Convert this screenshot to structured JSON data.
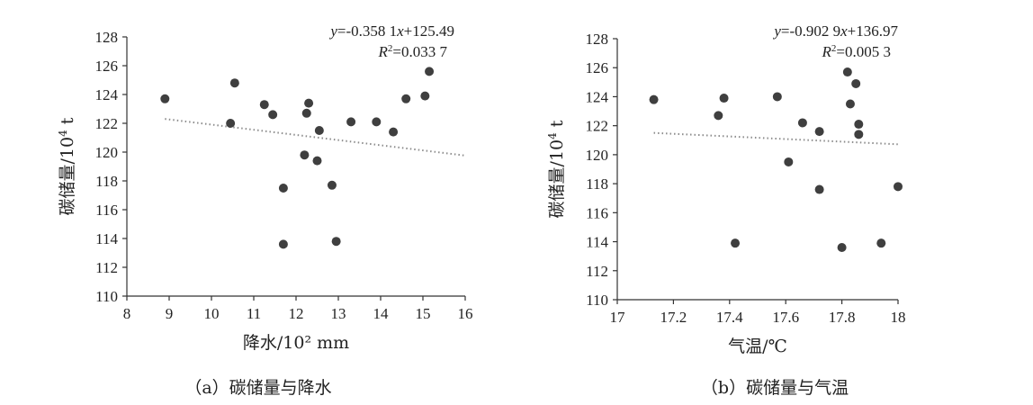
{
  "chart_data": [
    {
      "type": "scatter",
      "caption": "（a）碳储量与降水",
      "xlabel": "降水/10² mm",
      "ylabel_main": "碳储量/10",
      "ylabel_sup": "4",
      "ylabel_unit": " t",
      "xlim": [
        8,
        16
      ],
      "ylim": [
        110,
        128
      ],
      "xticks": [
        8,
        9,
        10,
        11,
        12,
        13,
        14,
        15,
        16
      ],
      "yticks": [
        110,
        112,
        114,
        116,
        118,
        120,
        122,
        124,
        126,
        128
      ],
      "equation": {
        "y": "y",
        "rest": "=-0.358 1",
        "x": "x",
        "tail": "+125.49"
      },
      "r2": {
        "r": "R",
        "sup": "2",
        "val": "=0.033 7"
      },
      "trendline": {
        "slope": -0.3581,
        "intercept": 125.49,
        "x_range": [
          8.9,
          16.0
        ]
      },
      "points": [
        {
          "x": 8.9,
          "y": 123.7
        },
        {
          "x": 10.45,
          "y": 122.0
        },
        {
          "x": 10.55,
          "y": 124.8
        },
        {
          "x": 11.25,
          "y": 123.3
        },
        {
          "x": 11.45,
          "y": 122.6
        },
        {
          "x": 11.7,
          "y": 117.5
        },
        {
          "x": 11.7,
          "y": 113.6
        },
        {
          "x": 12.2,
          "y": 119.8
        },
        {
          "x": 12.25,
          "y": 122.7
        },
        {
          "x": 12.3,
          "y": 123.4
        },
        {
          "x": 12.5,
          "y": 119.4
        },
        {
          "x": 12.55,
          "y": 121.5
        },
        {
          "x": 12.85,
          "y": 117.7
        },
        {
          "x": 12.95,
          "y": 113.8
        },
        {
          "x": 13.3,
          "y": 122.1
        },
        {
          "x": 13.9,
          "y": 122.1
        },
        {
          "x": 14.3,
          "y": 121.4
        },
        {
          "x": 14.6,
          "y": 123.7
        },
        {
          "x": 15.05,
          "y": 123.9
        },
        {
          "x": 15.15,
          "y": 125.6
        }
      ]
    },
    {
      "type": "scatter",
      "caption": "（b）碳储量与气温",
      "xlabel": "气温/℃",
      "ylabel_main": "碳储量/10",
      "ylabel_sup": "4",
      "ylabel_unit": " t",
      "xlim": [
        17,
        18
      ],
      "ylim": [
        110,
        128
      ],
      "xticks": [
        17,
        17.2,
        17.4,
        17.6,
        17.8,
        18
      ],
      "yticks": [
        110,
        112,
        114,
        116,
        118,
        120,
        122,
        124,
        126,
        128
      ],
      "equation": {
        "y": "y",
        "rest": "=-0.902 9",
        "x": "x",
        "tail": "+136.97"
      },
      "r2": {
        "r": "R",
        "sup": "2",
        "val": "=0.005 3"
      },
      "trendline": {
        "slope": -0.9029,
        "intercept": 136.97,
        "x_range": [
          17.13,
          18.0
        ]
      },
      "points": [
        {
          "x": 17.13,
          "y": 123.8
        },
        {
          "x": 17.36,
          "y": 122.7
        },
        {
          "x": 17.38,
          "y": 123.9
        },
        {
          "x": 17.42,
          "y": 113.9
        },
        {
          "x": 17.57,
          "y": 124.0
        },
        {
          "x": 17.61,
          "y": 119.5
        },
        {
          "x": 17.66,
          "y": 122.2
        },
        {
          "x": 17.72,
          "y": 121.6
        },
        {
          "x": 17.72,
          "y": 117.6
        },
        {
          "x": 17.8,
          "y": 113.6
        },
        {
          "x": 17.82,
          "y": 125.7
        },
        {
          "x": 17.83,
          "y": 123.5
        },
        {
          "x": 17.85,
          "y": 124.9
        },
        {
          "x": 17.86,
          "y": 121.4
        },
        {
          "x": 17.86,
          "y": 122.1
        },
        {
          "x": 17.94,
          "y": 113.9
        },
        {
          "x": 18.0,
          "y": 117.8
        }
      ]
    }
  ]
}
